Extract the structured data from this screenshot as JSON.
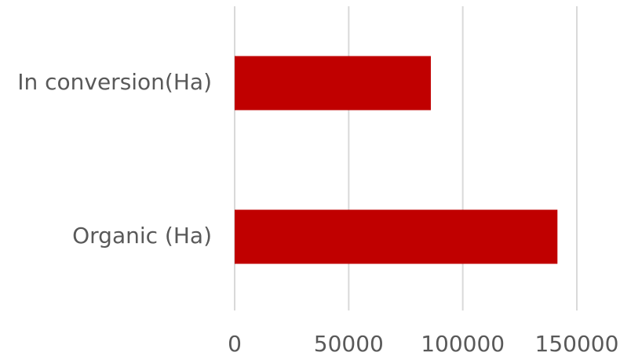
{
  "chart_data": {
    "type": "bar",
    "orientation": "horizontal",
    "categories": [
      "In conversion(Ha)",
      "Organic (Ha)"
    ],
    "values": [
      86000,
      141500
    ],
    "xlim": [
      0,
      150000
    ],
    "x_ticks": [
      0,
      50000,
      100000,
      150000
    ],
    "x_tick_labels": [
      "0",
      "50000",
      "100000",
      "150000"
    ],
    "title": "",
    "xlabel": "",
    "ylabel": "",
    "grid": true,
    "legend": "none",
    "bar_color": "#c00000",
    "gridline_color": "#d9d9d9",
    "text_color": "#595959"
  }
}
